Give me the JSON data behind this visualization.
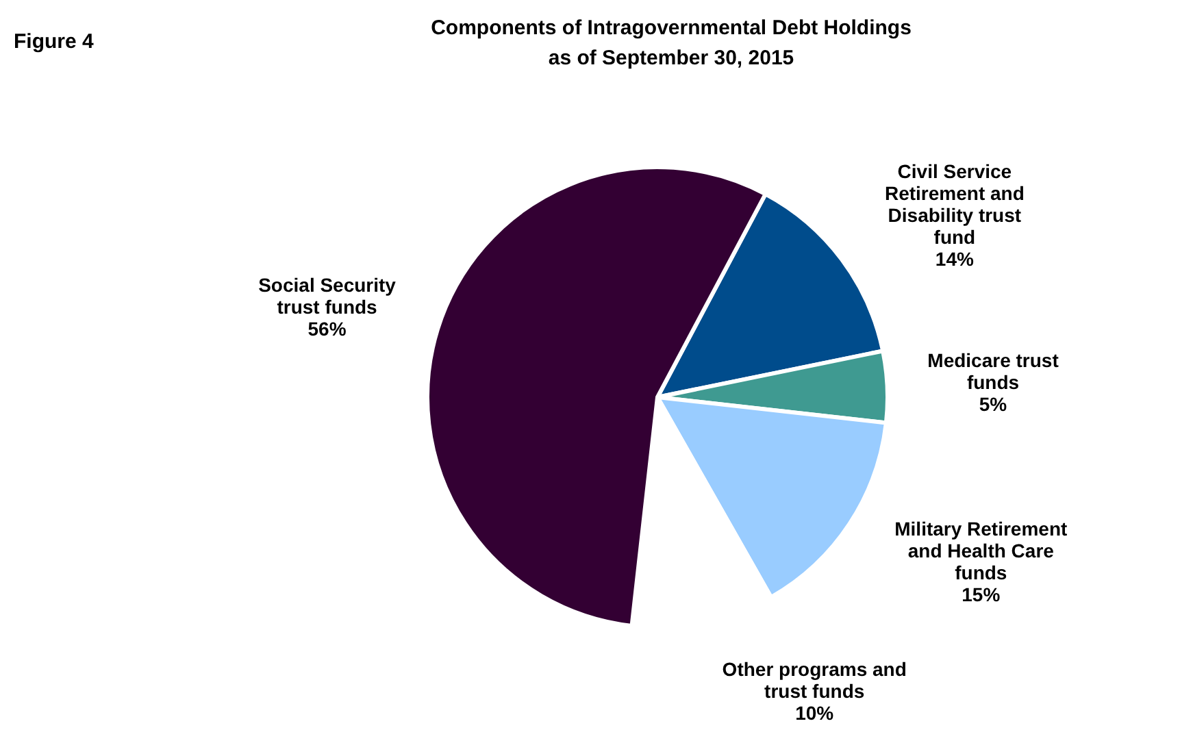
{
  "chart_data": {
    "type": "pie",
    "title": "Components of Intragovernmental Debt Holdings",
    "subtitle": "as of  September 30, 2015",
    "annotations": [
      "Figure 4"
    ],
    "categories": [
      "Civil Service Retirement and Disability trust fund",
      "Medicare trust funds",
      "Military Retirement and Health Care funds",
      "Other programs and trust funds",
      "Social Security trust funds"
    ],
    "values": [
      14,
      5,
      15,
      10,
      56
    ],
    "value_labels": [
      "14%",
      "5%",
      "15%",
      "10%",
      "56%"
    ],
    "colors": [
      "#004c8c",
      "#3f9a91",
      "#99ccff",
      "#ffffff",
      "#330033"
    ]
  }
}
